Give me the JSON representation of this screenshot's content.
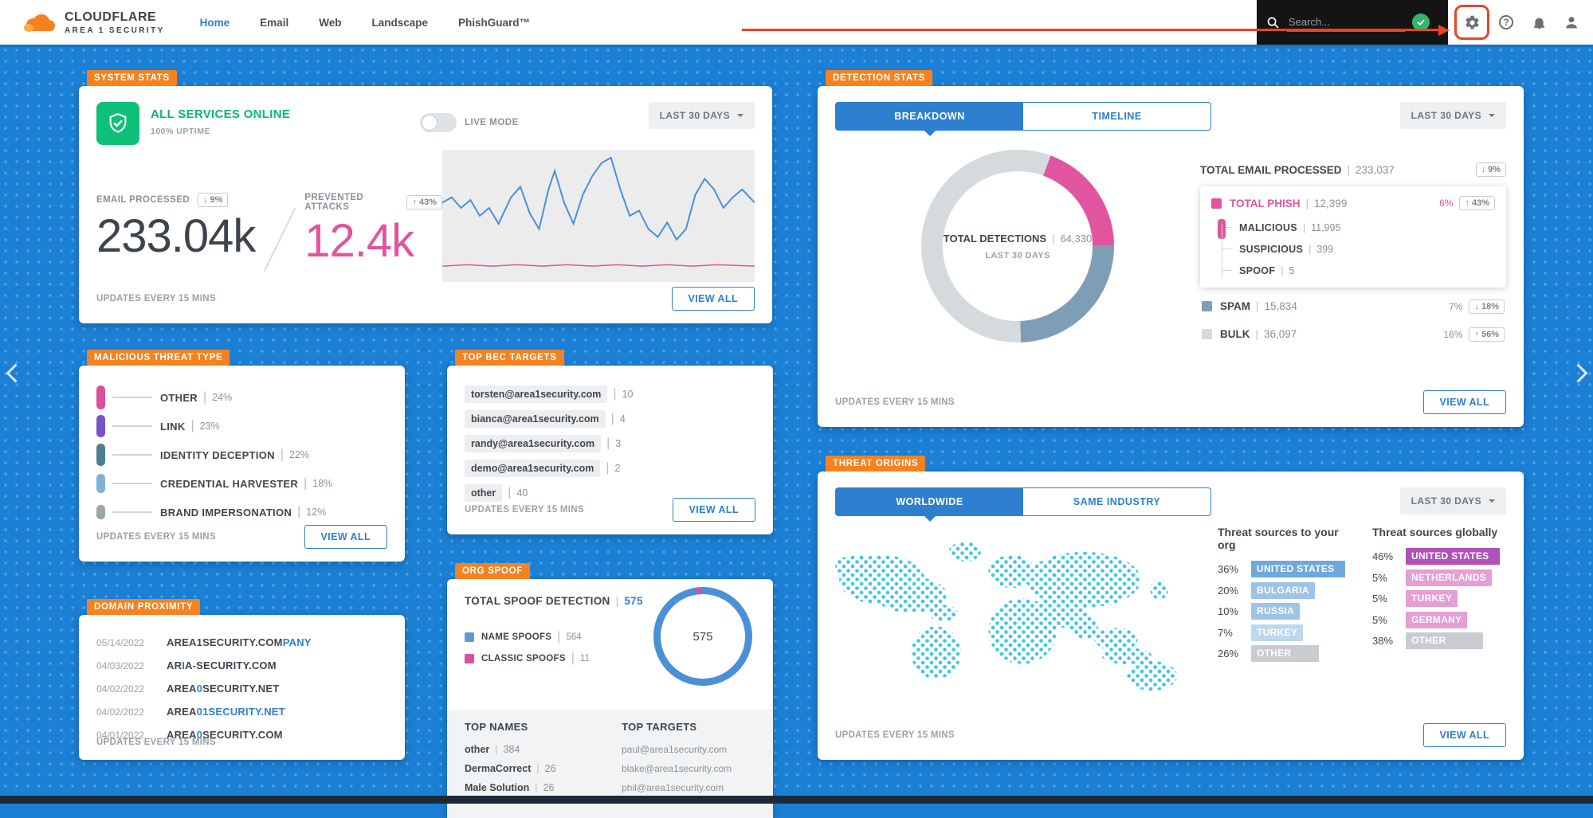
{
  "navbar": {
    "brand": "CLOUDFLARE",
    "brand_sub": "AREA 1 SECURITY",
    "items": [
      {
        "label": "Home",
        "active": true
      },
      {
        "label": "Email",
        "active": false
      },
      {
        "label": "Web",
        "active": false
      },
      {
        "label": "Landscape",
        "active": false
      },
      {
        "label": "PhishGuard™",
        "active": false
      }
    ],
    "search_placeholder": "Search..."
  },
  "colors": {
    "accent_blue": "#2e7fd0",
    "orange": "#f6821f",
    "pink": "#e0559e",
    "green": "#0fc178",
    "background_blue": "#1b7fd4",
    "map_dot": "#3ec6ea",
    "annotation_red": "#e8432b"
  },
  "system_stats": {
    "tag": "SYSTEM STATS",
    "status_text": "ALL SERVICES ONLINE",
    "uptime_text": "100% UPTIME",
    "live_mode_label": "LIVE MODE",
    "live_mode_on": false,
    "range_label": "LAST 30 DAYS",
    "email_processed": {
      "label": "EMAIL PROCESSED",
      "arrow": "↓",
      "delta": "9%",
      "value": "233.04k"
    },
    "prevented_attacks": {
      "label": "PREVENTED ATTACKS",
      "arrow": "↑",
      "delta": "43%",
      "value": "12.4k"
    },
    "updates_text": "UPDATES EVERY 15 MINS",
    "view_all_label": "VIEW ALL"
  },
  "malicious_threat_type": {
    "tag": "MALICIOUS THREAT TYPE",
    "items": [
      {
        "label": "OTHER",
        "pct": "24%",
        "value": 24,
        "color": "#d9509c"
      },
      {
        "label": "LINK",
        "pct": "23%",
        "value": 23,
        "color": "#7a52c7"
      },
      {
        "label": "IDENTITY DECEPTION",
        "pct": "22%",
        "value": 22,
        "color": "#4e7d91"
      },
      {
        "label": "CREDENTIAL HARVESTER",
        "pct": "18%",
        "value": 18,
        "color": "#7fb3d5"
      },
      {
        "label": "BRAND IMPERSONATION",
        "pct": "12%",
        "value": 12,
        "color": "#9aa5ab"
      }
    ],
    "updates_text": "UPDATES EVERY 15 MINS",
    "view_all_label": "VIEW ALL"
  },
  "domain_proximity": {
    "tag": "DOMAIN PROXIMITY",
    "rows": [
      {
        "date": "05/14/2022",
        "segments": [
          {
            "text": "AREA1SECURITY.COM",
            "hl": false
          },
          {
            "text": "PANY",
            "hl": true
          }
        ]
      },
      {
        "date": "04/03/2022",
        "segments": [
          {
            "text": "AR",
            "hl": false
          },
          {
            "text": "I",
            "hl": true
          },
          {
            "text": "A-SECURITY.COM",
            "hl": false
          }
        ]
      },
      {
        "date": "04/02/2022",
        "segments": [
          {
            "text": "AREA",
            "hl": false
          },
          {
            "text": "0",
            "hl": true
          },
          {
            "text": "SECURITY.NET",
            "hl": false
          }
        ]
      },
      {
        "date": "04/02/2022",
        "segments": [
          {
            "text": "AREA",
            "hl": false
          },
          {
            "text": "01SECURITY.NET",
            "hl": true
          }
        ]
      },
      {
        "date": "04/01/2022",
        "segments": [
          {
            "text": "AREA",
            "hl": false
          },
          {
            "text": "0",
            "hl": true
          },
          {
            "text": "SECURITY.COM",
            "hl": false
          }
        ]
      }
    ],
    "updates_text": "UPDATES EVERY 15 MINS"
  },
  "top_bec_targets": {
    "tag": "TOP BEC TARGETS",
    "rows": [
      {
        "email": "torsten@area1security.com",
        "count": "10"
      },
      {
        "email": "bianca@area1security.com",
        "count": "4"
      },
      {
        "email": "randy@area1security.com",
        "count": "3"
      },
      {
        "email": "demo@area1security.com",
        "count": "2"
      },
      {
        "email": "other",
        "count": "40"
      }
    ],
    "updates_text": "UPDATES EVERY 15 MINS",
    "view_all_label": "VIEW ALL"
  },
  "org_spoof": {
    "tag": "ORG SPOOF",
    "title": "TOTAL SPOOF DETECTION",
    "total": "575",
    "legend": [
      {
        "label": "NAME SPOOFS",
        "value": "564",
        "color": "#5b9bd5"
      },
      {
        "label": "CLASSIC SPOOFS",
        "value": "11",
        "color": "#d9509c"
      }
    ],
    "donut_center": "575",
    "top_names_header": "TOP NAMES",
    "top_targets_header": "TOP TARGETS",
    "top_names": [
      {
        "name": "other",
        "value": "384"
      },
      {
        "name": "DermaCorrect",
        "value": "26"
      },
      {
        "name": "Male Solution",
        "value": "26"
      }
    ],
    "top_targets": [
      "paul@area1security.com",
      "blake@area1security.com",
      "phil@area1security.com"
    ]
  },
  "detection_stats": {
    "tag": "DETECTION STATS",
    "tabs": [
      {
        "label": "BREAKDOWN",
        "active": true
      },
      {
        "label": "TIMELINE",
        "active": false
      }
    ],
    "range_label": "LAST 30 DAYS",
    "donut": {
      "center_label": "TOTAL DETECTIONS",
      "center_value": "64,330",
      "center_sub": "LAST 30 DAYS"
    },
    "total_email": {
      "label": "TOTAL EMAIL PROCESSED",
      "value": "233,037",
      "arrow": "↓",
      "delta": "9%"
    },
    "phish": {
      "label": "TOTAL PHISH",
      "value": "12,399",
      "pct": "6%",
      "arrow": "↑",
      "delta": "43%",
      "subs": [
        {
          "label": "MALICIOUS",
          "value": "11,995"
        },
        {
          "label": "SUSPICIOUS",
          "value": "399"
        },
        {
          "label": "SPOOF",
          "value": "5"
        }
      ]
    },
    "rows": [
      {
        "label": "SPAM",
        "value": "15,834",
        "pct": "7%",
        "arrow": "↓",
        "delta": "18%",
        "color": "#7d9eb5"
      },
      {
        "label": "BULK",
        "value": "36,097",
        "pct": "16%",
        "arrow": "↑",
        "delta": "56%",
        "color": "#d5dadd"
      }
    ],
    "updates_text": "UPDATES EVERY 15 MINS",
    "view_all_label": "VIEW ALL"
  },
  "threat_origins": {
    "tag": "THREAT ORIGINS",
    "tabs": [
      {
        "label": "WORLDWIDE",
        "active": true
      },
      {
        "label": "SAME INDUSTRY",
        "active": false
      }
    ],
    "range_label": "LAST 30 DAYS",
    "columns": [
      {
        "header": "Threat sources to your org",
        "rows": [
          {
            "pct": "36%",
            "value": 36,
            "country": "UNITED STATES",
            "color": "#6fa8dc"
          },
          {
            "pct": "20%",
            "value": 20,
            "country": "BULGARIA",
            "color": "#9dc3e6"
          },
          {
            "pct": "10%",
            "value": 10,
            "country": "RUSSIA",
            "color": "#9dc3e6"
          },
          {
            "pct": "7%",
            "value": 7,
            "country": "TURKEY",
            "color": "#bdd7ee"
          },
          {
            "pct": "26%",
            "value": 26,
            "country": "OTHER",
            "color": "#c9cdd1"
          }
        ]
      },
      {
        "header": "Threat sources globally",
        "rows": [
          {
            "pct": "46%",
            "value": 46,
            "country": "UNITED STATES",
            "color": "#b052b8"
          },
          {
            "pct": "5%",
            "value": 5,
            "country": "NETHERLANDS",
            "color": "#e49fd4"
          },
          {
            "pct": "5%",
            "value": 5,
            "country": "TURKEY",
            "color": "#e49fd4"
          },
          {
            "pct": "5%",
            "value": 5,
            "country": "GERMANY",
            "color": "#e49fd4"
          },
          {
            "pct": "38%",
            "value": 38,
            "country": "OTHER",
            "color": "#c9cdd1"
          }
        ]
      }
    ],
    "updates_text": "UPDATES EVERY 15 MINS",
    "view_all_label": "VIEW ALL"
  },
  "chart_data": [
    {
      "id": "detection-breakdown",
      "type": "donut",
      "title": "TOTAL DETECTIONS",
      "total": 64330,
      "period": "LAST 30 DAYS",
      "start_angle_deg": 20,
      "slices": [
        {
          "label": "TOTAL PHISH",
          "value": 12399,
          "color": "#e0559e"
        },
        {
          "label": "SPAM",
          "value": 15834,
          "color": "#7d9eb5"
        },
        {
          "label": "BULK",
          "value": 36097,
          "color": "#d5dadd"
        }
      ]
    },
    {
      "id": "org-spoof",
      "type": "donut",
      "title": "TOTAL SPOOF DETECTION",
      "total": 575,
      "start_angle_deg": -8,
      "slices": [
        {
          "label": "CLASSIC SPOOFS",
          "value": 11,
          "color": "#d9509c"
        },
        {
          "label": "NAME SPOOFS",
          "value": 564,
          "color": "#4a90d9"
        }
      ]
    },
    {
      "id": "malicious-threat-type",
      "type": "bar",
      "unit": "%",
      "categories": [
        "OTHER",
        "LINK",
        "IDENTITY DECEPTION",
        "CREDENTIAL HARVESTER",
        "BRAND IMPERSONATION"
      ],
      "values": [
        24,
        23,
        22,
        18,
        12
      ]
    },
    {
      "id": "threat-sources-org",
      "type": "bar",
      "title": "Threat sources to your org",
      "unit": "%",
      "categories": [
        "UNITED STATES",
        "BULGARIA",
        "RUSSIA",
        "TURKEY",
        "OTHER"
      ],
      "values": [
        36,
        20,
        10,
        7,
        26
      ]
    },
    {
      "id": "threat-sources-global",
      "type": "bar",
      "title": "Threat sources globally",
      "unit": "%",
      "categories": [
        "UNITED STATES",
        "NETHERLANDS",
        "TURKEY",
        "GERMANY",
        "OTHER"
      ],
      "values": [
        46,
        5,
        5,
        5,
        38
      ]
    },
    {
      "id": "system-activity",
      "type": "line",
      "x_range": [
        0,
        100
      ],
      "y_range": [
        0,
        100
      ],
      "series": [
        {
          "name": "processed",
          "color": "#4a90d9",
          "points": [
            [
              0,
              40
            ],
            [
              3,
              36
            ],
            [
              6,
              44
            ],
            [
              9,
              38
            ],
            [
              12,
              50
            ],
            [
              15,
              44
            ],
            [
              18,
              56
            ],
            [
              22,
              36
            ],
            [
              25,
              28
            ],
            [
              28,
              48
            ],
            [
              31,
              60
            ],
            [
              34,
              30
            ],
            [
              36,
              16
            ],
            [
              39,
              40
            ],
            [
              42,
              56
            ],
            [
              45,
              34
            ],
            [
              48,
              20
            ],
            [
              51,
              10
            ],
            [
              54,
              6
            ],
            [
              57,
              30
            ],
            [
              60,
              50
            ],
            [
              63,
              46
            ],
            [
              66,
              60
            ],
            [
              69,
              66
            ],
            [
              72,
              55
            ],
            [
              75,
              68
            ],
            [
              78,
              60
            ],
            [
              81,
              34
            ],
            [
              84,
              22
            ],
            [
              87,
              30
            ],
            [
              90,
              44
            ],
            [
              93,
              36
            ],
            [
              96,
              30
            ],
            [
              100,
              40
            ]
          ]
        },
        {
          "name": "prevented",
          "color": "#e0559e",
          "points": [
            [
              0,
              88
            ],
            [
              8,
              87
            ],
            [
              16,
              88
            ],
            [
              24,
              87
            ],
            [
              32,
              88
            ],
            [
              40,
              87
            ],
            [
              48,
              88
            ],
            [
              56,
              87
            ],
            [
              64,
              88
            ],
            [
              72,
              87
            ],
            [
              80,
              88
            ],
            [
              88,
              87
            ],
            [
              100,
              88
            ]
          ]
        }
      ]
    }
  ]
}
